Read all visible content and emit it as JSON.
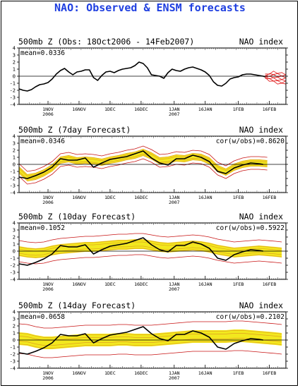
{
  "page": {
    "title": "NAO: Observed & ENSM forecasts"
  },
  "colors": {
    "title": "#1f3fe0",
    "observed": "#000000",
    "ensemble_band": "#f2e81e",
    "ensemble_members": "#e0a020",
    "ensemble_extremes": "#c81414",
    "forecast_tail": "#e01010"
  },
  "chart_data": [
    {
      "type": "line",
      "header_left": "500mb Z (Obs: 18Oct2006 - 14Feb2007)",
      "header_right": "NAO index",
      "mean_label": "mean=0.0336",
      "cor_label": "",
      "ylim": [
        -4,
        4
      ],
      "yticks": [
        -4,
        -3,
        -2,
        -1,
        0,
        1,
        2,
        3,
        4
      ],
      "xlim": [
        0,
        129
      ],
      "xticks": [
        {
          "x": 14,
          "label": "1NOV",
          "sub": "2006"
        },
        {
          "x": 29,
          "label": "16NOV",
          "sub": ""
        },
        {
          "x": 44,
          "label": "1DEC",
          "sub": ""
        },
        {
          "x": 59,
          "label": "16DEC",
          "sub": ""
        },
        {
          "x": 75,
          "label": "1JAN",
          "sub": "2007"
        },
        {
          "x": 90,
          "label": "16JAN",
          "sub": ""
        },
        {
          "x": 106,
          "label": "1FEB",
          "sub": ""
        },
        {
          "x": 121,
          "label": "16FEB",
          "sub": ""
        }
      ],
      "series": [
        {
          "kind": "observed",
          "x": [
            0,
            2,
            4,
            6,
            8,
            10,
            12,
            14,
            16,
            18,
            20,
            22,
            24,
            26,
            28,
            30,
            32,
            34,
            36,
            38,
            40,
            42,
            44,
            46,
            48,
            50,
            52,
            54,
            56,
            58,
            60,
            62,
            64,
            66,
            68,
            70,
            72,
            74,
            76,
            78,
            80,
            82,
            84,
            86,
            88,
            90,
            92,
            94,
            96,
            98,
            100,
            102,
            104,
            106,
            108,
            110,
            112,
            114,
            116,
            118,
            119
          ],
          "y": [
            -1.8,
            -2.0,
            -2.1,
            -1.9,
            -1.5,
            -1.2,
            -1.1,
            -0.9,
            -0.4,
            0.3,
            0.8,
            1.1,
            0.6,
            0.2,
            0.6,
            0.7,
            0.9,
            0.9,
            -0.2,
            -0.6,
            0.1,
            0.6,
            0.7,
            0.5,
            0.8,
            1.0,
            1.1,
            1.2,
            1.5,
            2.0,
            1.8,
            1.2,
            0.2,
            0.1,
            0.0,
            -0.3,
            0.5,
            1.0,
            0.8,
            0.7,
            1.0,
            1.2,
            1.3,
            1.1,
            0.9,
            0.6,
            0.1,
            -0.8,
            -1.3,
            -1.4,
            -1.0,
            -0.4,
            -0.2,
            -0.1,
            0.2,
            0.3,
            0.3,
            0.2,
            0.1,
            0.0,
            -0.1
          ]
        },
        {
          "kind": "forecast_spread",
          "x": [
            119,
            121,
            123,
            125,
            127,
            129
          ],
          "upper": [
            0.2,
            0.4,
            0.6,
            0.5,
            0.4,
            0.3
          ],
          "lower": [
            -0.3,
            -0.6,
            -0.8,
            -1.0,
            -1.1,
            -1.0
          ]
        }
      ]
    },
    {
      "type": "line",
      "header_left": "500mb Z (7day Forecast)",
      "header_right": "NAO index",
      "mean_label": "mean=0.0346",
      "cor_label": "cor(w/obs)=0.8620",
      "ylim": [
        -4,
        4
      ],
      "yticks": [
        -4,
        -3,
        -2,
        -1,
        0,
        1,
        2,
        3,
        4
      ],
      "xlim": [
        0,
        129
      ],
      "xticks": [
        {
          "x": 14,
          "label": "1NOV",
          "sub": "2006"
        },
        {
          "x": 29,
          "label": "16NOV",
          "sub": ""
        },
        {
          "x": 44,
          "label": "1DEC",
          "sub": ""
        },
        {
          "x": 59,
          "label": "16DEC",
          "sub": ""
        },
        {
          "x": 75,
          "label": "1JAN",
          "sub": "2007"
        },
        {
          "x": 90,
          "label": "16JAN",
          "sub": ""
        },
        {
          "x": 106,
          "label": "1FEB",
          "sub": ""
        },
        {
          "x": 121,
          "label": "16FEB",
          "sub": ""
        }
      ],
      "series": [
        {
          "kind": "ensemble",
          "x": [
            0,
            4,
            8,
            12,
            16,
            20,
            24,
            28,
            32,
            36,
            40,
            44,
            48,
            52,
            56,
            60,
            64,
            68,
            72,
            76,
            80,
            84,
            88,
            92,
            96,
            100,
            104,
            108,
            112,
            116,
            120
          ],
          "mean": [
            -0.8,
            -1.9,
            -1.7,
            -1.2,
            -0.5,
            0.6,
            0.8,
            0.5,
            0.6,
            0.5,
            0.3,
            0.6,
            0.8,
            1.1,
            1.3,
            1.7,
            1.2,
            0.5,
            0.6,
            0.9,
            0.8,
            1.1,
            1.0,
            0.5,
            -0.6,
            -1.1,
            -0.4,
            0.0,
            0.2,
            0.2,
            0.1
          ],
          "band_half": [
            0.5,
            0.5,
            0.5,
            0.5,
            0.5,
            0.5,
            0.5,
            0.5,
            0.5,
            0.5,
            0.5,
            0.5,
            0.5,
            0.5,
            0.5,
            0.5,
            0.5,
            0.5,
            0.5,
            0.5,
            0.5,
            0.5,
            0.5,
            0.5,
            0.5,
            0.5,
            0.5,
            0.5,
            0.5,
            0.5,
            0.5
          ],
          "extreme_half": [
            0.9,
            0.9,
            0.9,
            0.9,
            0.9,
            0.9,
            0.9,
            0.9,
            0.9,
            0.9,
            0.9,
            0.9,
            0.9,
            0.9,
            0.9,
            0.9,
            0.9,
            0.9,
            0.9,
            0.9,
            0.9,
            0.9,
            0.9,
            0.9,
            0.9,
            0.9,
            0.9,
            0.9,
            0.9,
            0.9,
            0.9
          ]
        },
        {
          "kind": "observed",
          "x": [
            0,
            4,
            8,
            12,
            16,
            20,
            24,
            28,
            32,
            36,
            40,
            44,
            48,
            52,
            56,
            60,
            64,
            68,
            72,
            76,
            80,
            84,
            88,
            92,
            96,
            100,
            104,
            108,
            112,
            116,
            118
          ],
          "y": [
            -1.8,
            -2.0,
            -1.6,
            -1.1,
            -0.4,
            0.8,
            0.6,
            0.6,
            0.9,
            -0.4,
            0.2,
            0.7,
            0.9,
            1.1,
            1.5,
            1.9,
            0.9,
            0.2,
            -0.1,
            0.8,
            0.8,
            1.3,
            1.0,
            0.4,
            -1.0,
            -1.3,
            -0.5,
            -0.1,
            0.2,
            0.1,
            0.0
          ]
        }
      ]
    },
    {
      "type": "line",
      "header_left": "500mb Z (10day Forecast)",
      "header_right": "NAO index",
      "mean_label": "mean=0.1052",
      "cor_label": "cor(w/obs)=0.5922",
      "ylim": [
        -4,
        4
      ],
      "yticks": [
        -4,
        -3,
        -2,
        -1,
        0,
        1,
        2,
        3,
        4
      ],
      "xlim": [
        0,
        129
      ],
      "xticks": [
        {
          "x": 14,
          "label": "1NOV",
          "sub": "2006"
        },
        {
          "x": 29,
          "label": "16NOV",
          "sub": ""
        },
        {
          "x": 44,
          "label": "1DEC",
          "sub": ""
        },
        {
          "x": 59,
          "label": "16DEC",
          "sub": ""
        },
        {
          "x": 75,
          "label": "1JAN",
          "sub": "2007"
        },
        {
          "x": 90,
          "label": "16JAN",
          "sub": ""
        },
        {
          "x": 106,
          "label": "1FEB",
          "sub": ""
        },
        {
          "x": 121,
          "label": "16FEB",
          "sub": ""
        }
      ],
      "series": [
        {
          "kind": "ensemble",
          "x": [
            0,
            4,
            8,
            12,
            16,
            20,
            24,
            28,
            32,
            36,
            40,
            44,
            48,
            52,
            56,
            60,
            64,
            68,
            72,
            76,
            80,
            84,
            88,
            92,
            96,
            100,
            104,
            108,
            112,
            116,
            120,
            124,
            127
          ],
          "mean": [
            0.0,
            -0.2,
            -0.3,
            -0.2,
            0.1,
            0.3,
            0.4,
            0.5,
            0.6,
            0.6,
            0.7,
            0.8,
            0.9,
            0.9,
            1.0,
            1.0,
            0.8,
            0.6,
            0.5,
            0.6,
            0.7,
            0.8,
            0.7,
            0.5,
            0.2,
            0.0,
            -0.2,
            -0.1,
            0.0,
            0.1,
            0.0,
            -0.1,
            -0.2
          ],
          "band_half": [
            0.7,
            0.7,
            0.7,
            0.7,
            0.7,
            0.7,
            0.7,
            0.7,
            0.7,
            0.7,
            0.7,
            0.7,
            0.7,
            0.7,
            0.7,
            0.7,
            0.7,
            0.7,
            0.7,
            0.7,
            0.7,
            0.7,
            0.7,
            0.7,
            0.7,
            0.7,
            0.7,
            0.7,
            0.7,
            0.7,
            0.7,
            0.7,
            0.7
          ],
          "extreme_half": [
            1.5,
            1.5,
            1.5,
            1.5,
            1.5,
            1.5,
            1.5,
            1.5,
            1.5,
            1.5,
            1.5,
            1.5,
            1.5,
            1.5,
            1.5,
            1.5,
            1.5,
            1.5,
            1.5,
            1.5,
            1.5,
            1.5,
            1.5,
            1.5,
            1.5,
            1.5,
            1.5,
            1.5,
            1.5,
            1.5,
            1.5,
            1.5,
            1.5
          ]
        },
        {
          "kind": "observed",
          "x": [
            0,
            4,
            8,
            12,
            16,
            20,
            24,
            28,
            32,
            36,
            40,
            44,
            48,
            52,
            56,
            60,
            64,
            68,
            72,
            76,
            80,
            84,
            88,
            92,
            96,
            100,
            104,
            108,
            112,
            116,
            118
          ],
          "y": [
            -1.8,
            -2.0,
            -1.6,
            -1.1,
            -0.4,
            0.8,
            0.6,
            0.6,
            0.9,
            -0.4,
            0.2,
            0.7,
            0.9,
            1.1,
            1.5,
            1.9,
            0.9,
            0.2,
            -0.1,
            0.8,
            0.8,
            1.3,
            1.0,
            0.4,
            -1.0,
            -1.3,
            -0.5,
            -0.1,
            0.2,
            0.1,
            0.0
          ]
        }
      ]
    },
    {
      "type": "line",
      "header_left": "500mb Z (14day Forecast)",
      "header_right": "NAO index",
      "mean_label": "mean=0.0658",
      "cor_label": "cor(w/obs)=0.2102",
      "ylim": [
        -4,
        4
      ],
      "yticks": [
        -4,
        -3,
        -2,
        -1,
        0,
        1,
        2,
        3,
        4
      ],
      "xlim": [
        0,
        129
      ],
      "xticks": [
        {
          "x": 14,
          "label": "1NOV",
          "sub": "2006"
        },
        {
          "x": 29,
          "label": "16NOV",
          "sub": ""
        },
        {
          "x": 44,
          "label": "1DEC",
          "sub": ""
        },
        {
          "x": 59,
          "label": "16DEC",
          "sub": ""
        },
        {
          "x": 75,
          "label": "1JAN",
          "sub": "2007"
        },
        {
          "x": 90,
          "label": "16JAN",
          "sub": ""
        },
        {
          "x": 106,
          "label": "1FEB",
          "sub": ""
        },
        {
          "x": 121,
          "label": "16FEB",
          "sub": ""
        }
      ],
      "series": [
        {
          "kind": "ensemble",
          "x": [
            0,
            4,
            8,
            12,
            16,
            20,
            24,
            28,
            32,
            36,
            40,
            44,
            48,
            52,
            56,
            60,
            64,
            68,
            72,
            76,
            80,
            84,
            88,
            92,
            96,
            100,
            104,
            108,
            112,
            116,
            120,
            124,
            127
          ],
          "mean": [
            0.2,
            0.1,
            -0.2,
            -0.4,
            -0.4,
            -0.3,
            -0.2,
            -0.1,
            0.0,
            0.0,
            0.0,
            0.0,
            0.1,
            0.1,
            0.0,
            0.0,
            0.0,
            0.1,
            0.2,
            0.3,
            0.4,
            0.5,
            0.5,
            0.5,
            0.5,
            0.5,
            0.6,
            0.6,
            0.5,
            0.4,
            0.3,
            0.2,
            0.1
          ],
          "band_half": [
            0.9,
            0.9,
            0.9,
            0.9,
            0.9,
            0.9,
            0.9,
            0.9,
            0.9,
            0.9,
            0.9,
            0.9,
            0.9,
            0.9,
            0.9,
            0.9,
            0.9,
            0.9,
            0.9,
            0.9,
            0.9,
            0.9,
            0.9,
            0.9,
            0.9,
            0.9,
            0.9,
            0.9,
            0.9,
            0.9,
            0.9,
            0.9,
            0.9
          ],
          "extreme_half": [
            2.1,
            2.1,
            2.1,
            2.1,
            2.1,
            2.1,
            2.1,
            2.1,
            2.1,
            2.1,
            2.1,
            2.1,
            2.1,
            2.1,
            2.1,
            2.1,
            2.1,
            2.1,
            2.1,
            2.1,
            2.1,
            2.1,
            2.1,
            2.1,
            2.1,
            2.1,
            2.1,
            2.1,
            2.1,
            2.1,
            2.1,
            2.1,
            2.1
          ]
        },
        {
          "kind": "observed",
          "x": [
            0,
            4,
            8,
            12,
            16,
            20,
            24,
            28,
            32,
            36,
            40,
            44,
            48,
            52,
            56,
            60,
            64,
            68,
            72,
            76,
            80,
            84,
            88,
            92,
            96,
            100,
            104,
            108,
            112,
            116,
            118
          ],
          "y": [
            -1.8,
            -2.0,
            -1.6,
            -1.1,
            -0.4,
            0.8,
            0.6,
            0.6,
            0.9,
            -0.4,
            0.2,
            0.7,
            0.9,
            1.1,
            1.5,
            1.9,
            0.9,
            0.2,
            -0.1,
            0.8,
            0.8,
            1.3,
            1.0,
            0.4,
            -1.0,
            -1.3,
            -0.5,
            -0.1,
            0.2,
            0.1,
            0.0
          ]
        }
      ]
    }
  ]
}
